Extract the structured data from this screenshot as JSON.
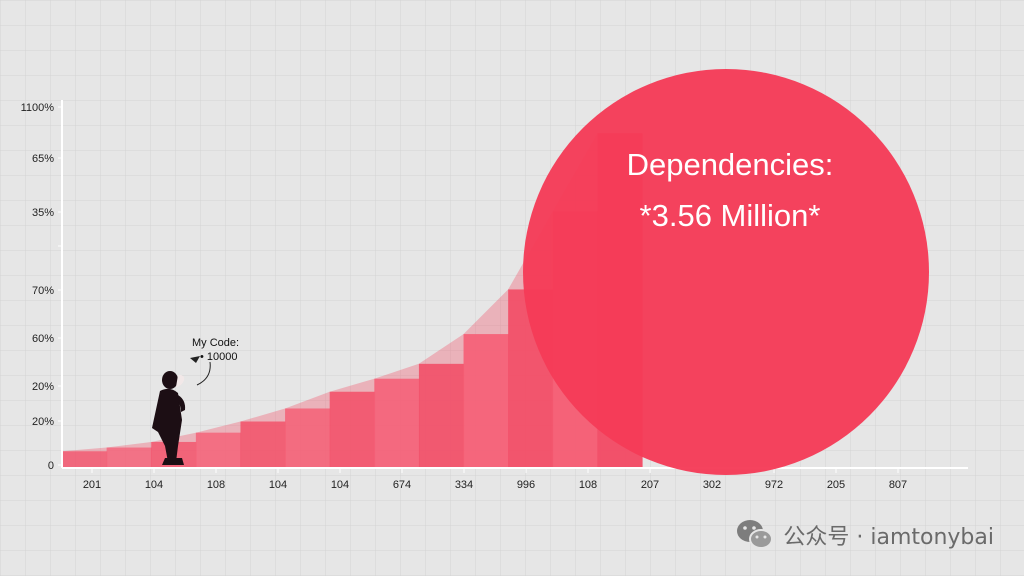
{
  "chart_data": {
    "type": "area",
    "y_tick_labels": [
      "0",
      "20%",
      "20%",
      "60%",
      "70%",
      "",
      "35%",
      "65%",
      "1100%"
    ],
    "x_tick_labels": [
      "201",
      "104",
      "108",
      "104",
      "104",
      "674",
      "334",
      "996",
      "108",
      "207",
      "302",
      "972",
      "205",
      "807"
    ],
    "area_values": [
      0.09,
      0.11,
      0.14,
      0.19,
      0.25,
      0.32,
      0.41,
      0.48,
      0.56,
      0.72,
      0.96,
      1.38,
      1.8
    ],
    "bubble": {
      "line1": "Dependencies:",
      "line2": "*3.56 Million*"
    },
    "annotation": {
      "line1": "My Code:",
      "line2": "• 10000"
    },
    "colors": {
      "area": "#f24f68",
      "bubble": "#f53b57",
      "grid": "#d4d4d4",
      "axis": "#ffffff"
    },
    "grid": true
  },
  "watermark": {
    "icon": "wechat-icon",
    "text": "公众号 · iamtonybai"
  }
}
